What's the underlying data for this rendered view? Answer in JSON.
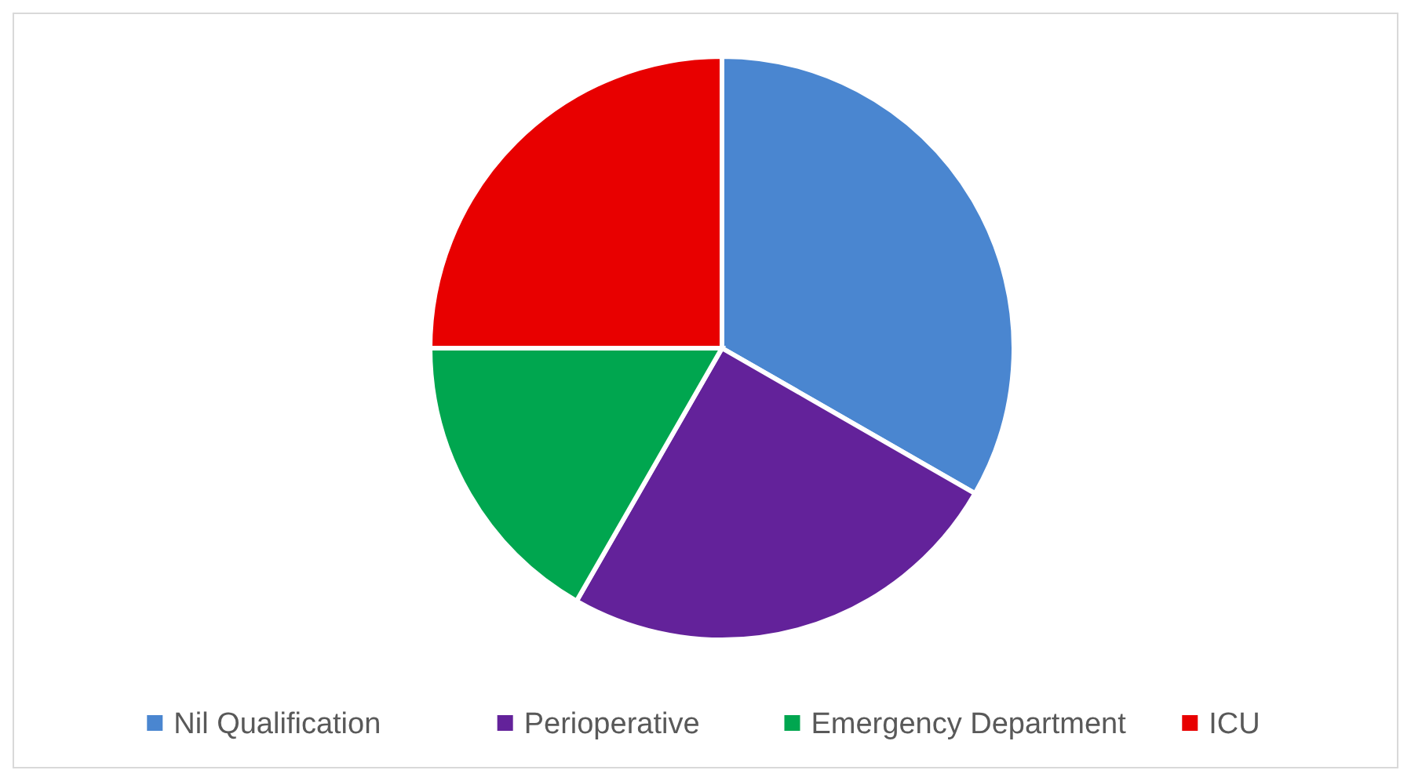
{
  "chart_data": {
    "type": "pie",
    "categories": [
      "Nil Qualification",
      "Perioperative",
      "Emergency Department",
      "ICU"
    ],
    "values": [
      33.3,
      25,
      16.7,
      25
    ],
    "colors": [
      "#4a86d0",
      "#63229a",
      "#00a64f",
      "#e80000"
    ],
    "legend": "bottom"
  }
}
